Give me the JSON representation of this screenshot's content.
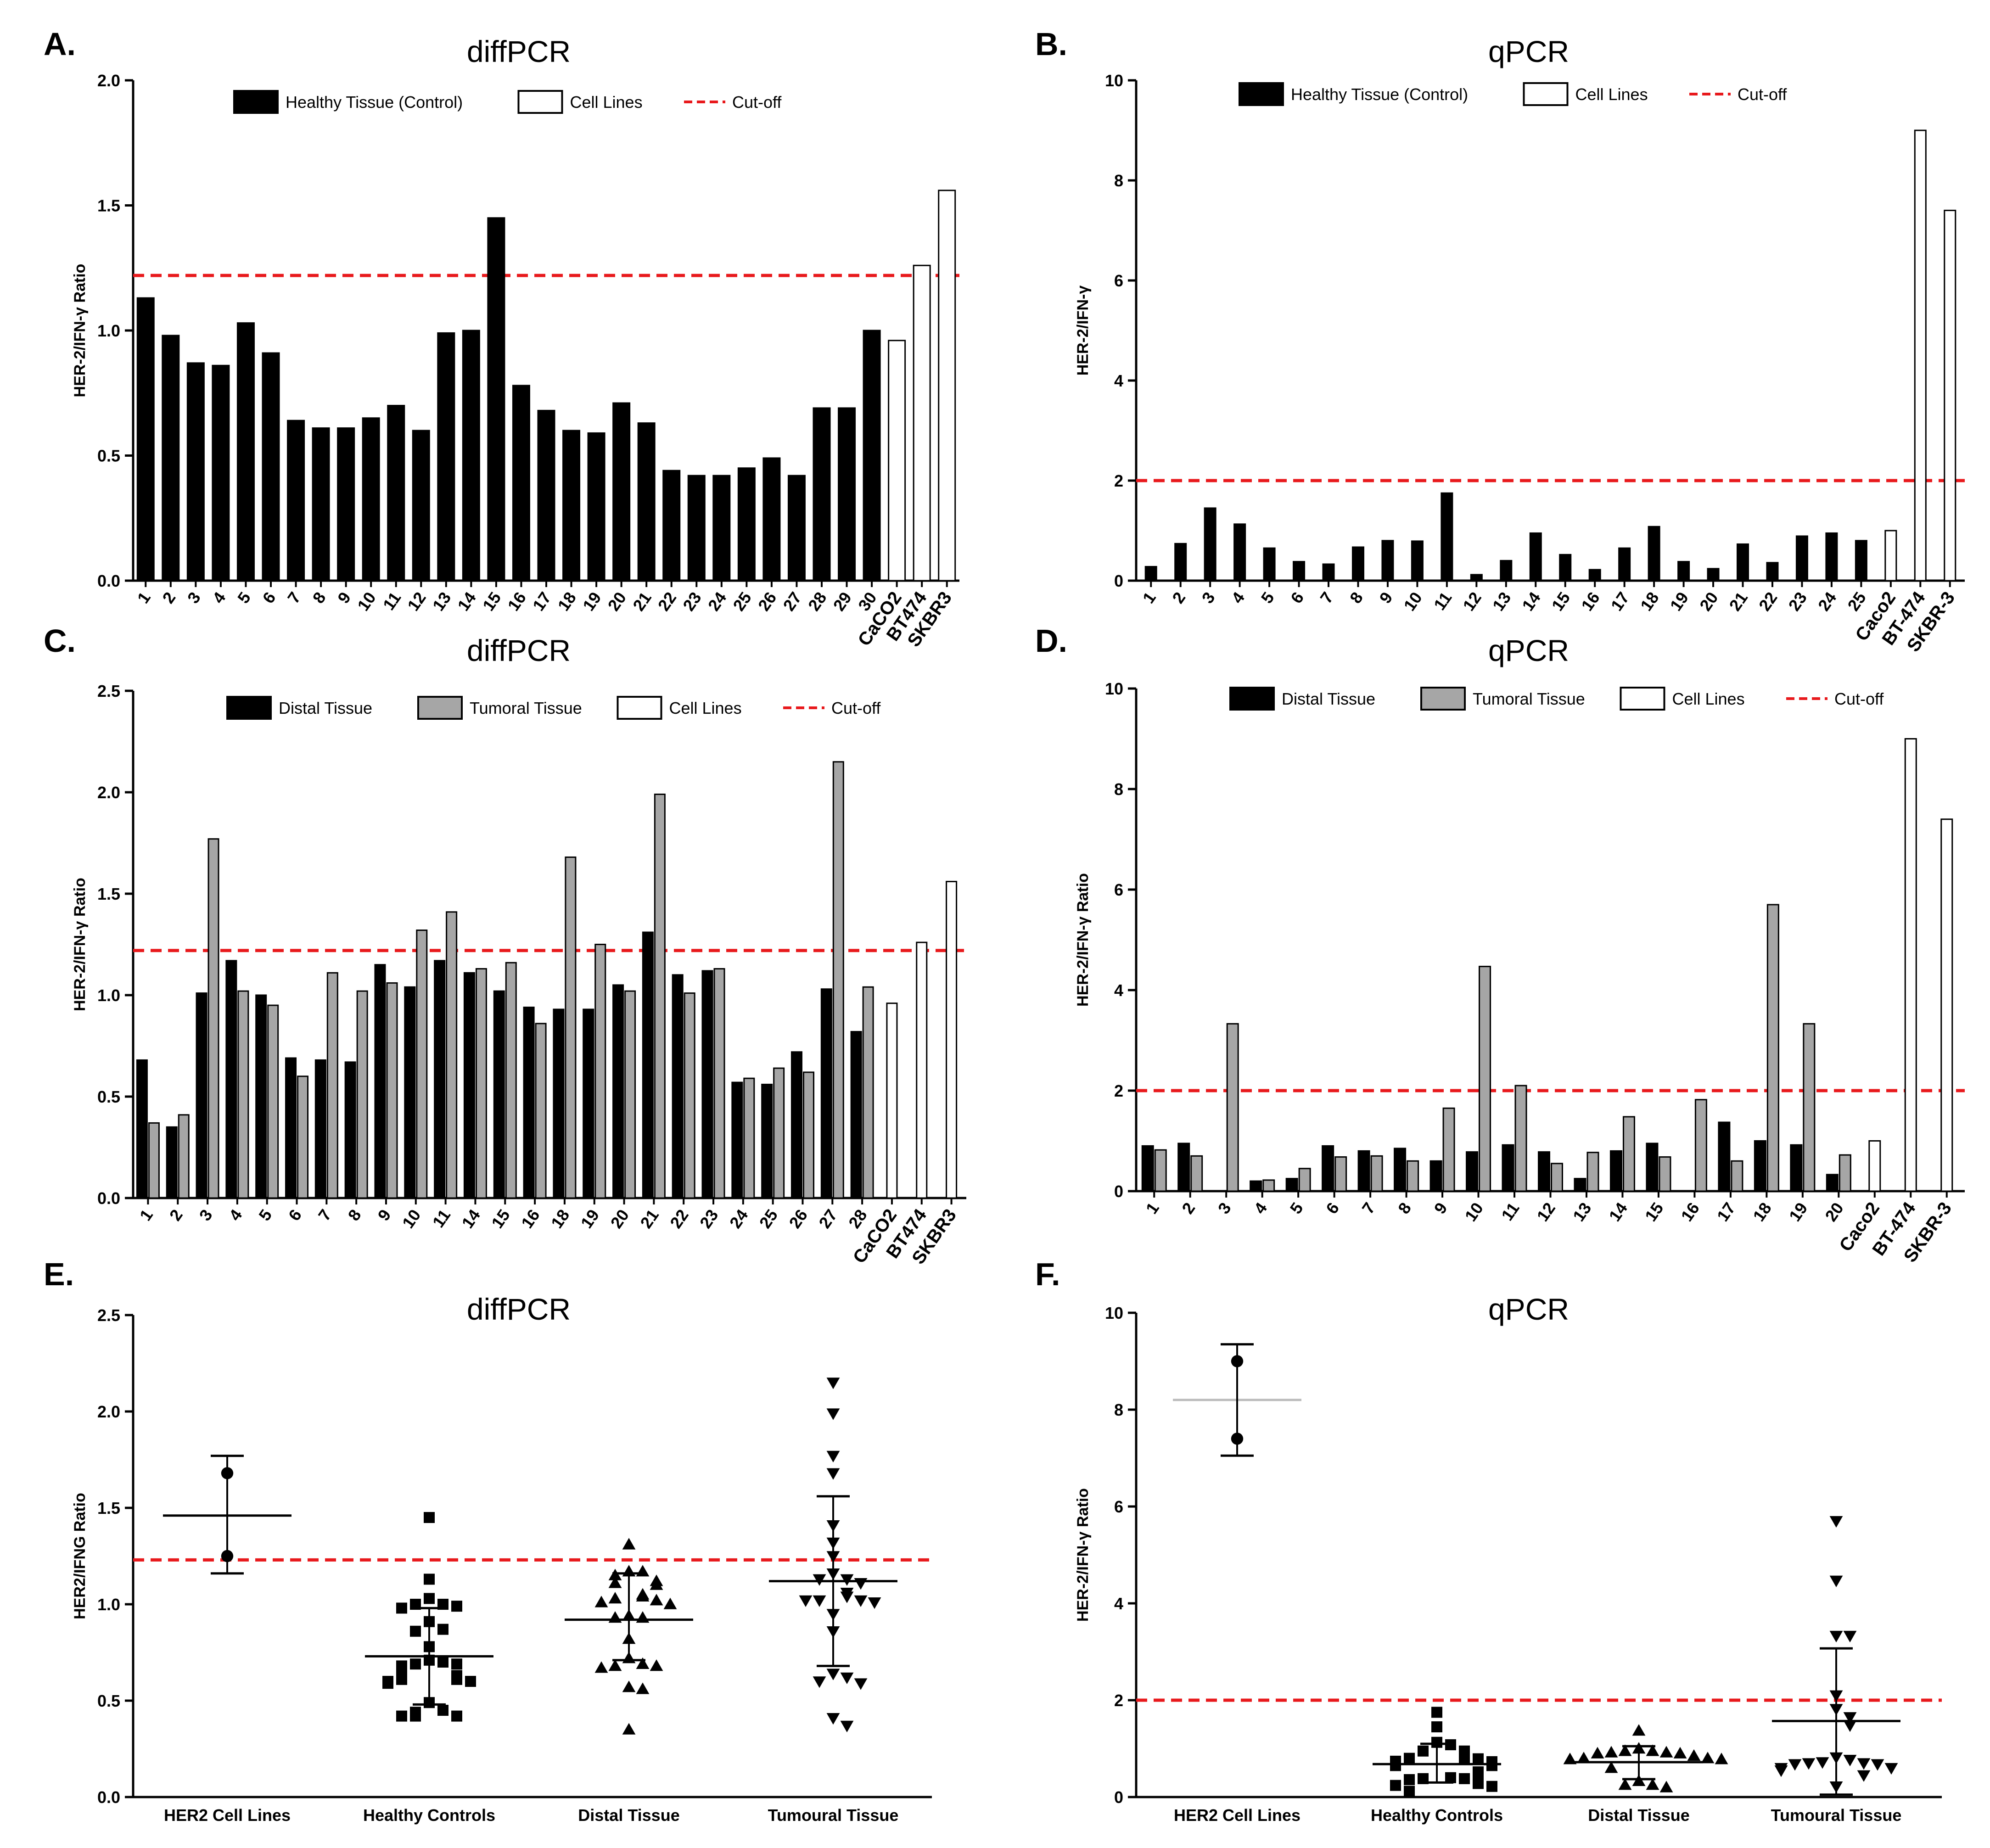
{
  "panels": [
    {
      "letter": "A.",
      "title": "diffPCR",
      "ylabel": "HER-2/IFN-γ Ratio",
      "yticks": [
        "0.0",
        "0.5",
        "1.0",
        "1.5",
        "2.0"
      ],
      "legend": [
        {
          "label": "Healthy  Tissue (Control)",
          "kind": "black"
        },
        {
          "label": "Cell  Lines",
          "kind": "white"
        },
        {
          "label": "Cut-off",
          "kind": "cutoff"
        }
      ]
    },
    {
      "letter": "B.",
      "title": "qPCR",
      "ylabel": "HER-2/IFN-γ",
      "yticks": [
        "0",
        "2",
        "4",
        "6",
        "8",
        "10"
      ],
      "legend": [
        {
          "label": "Healthy  Tissue (Control)",
          "kind": "black"
        },
        {
          "label": "Cell  Lines",
          "kind": "white"
        },
        {
          "label": "Cut-off",
          "kind": "cutoff"
        }
      ]
    },
    {
      "letter": "C.",
      "title": "diffPCR",
      "ylabel": "HER-2/IFN-γ Ratio",
      "yticks": [
        "0.0",
        "0.5",
        "1.0",
        "1.5",
        "2.0",
        "2.5"
      ],
      "legend": [
        {
          "label": "Distal  Tissue",
          "kind": "black"
        },
        {
          "label": "Tumoral  Tissue",
          "kind": "gray"
        },
        {
          "label": "Cell  Lines",
          "kind": "white"
        },
        {
          "label": "Cut-off",
          "kind": "cutoff"
        }
      ]
    },
    {
      "letter": "D.",
      "title": "qPCR",
      "ylabel": "HER-2/IFN-γ Ratio",
      "yticks": [
        "0",
        "2",
        "4",
        "6",
        "8",
        "10"
      ],
      "legend": [
        {
          "label": "Distal  Tissue",
          "kind": "black"
        },
        {
          "label": "Tumoral  Tissue",
          "kind": "gray"
        },
        {
          "label": "Cell  Lines",
          "kind": "white"
        },
        {
          "label": "Cut-off",
          "kind": "cutoff"
        }
      ]
    },
    {
      "letter": "E.",
      "title": "diffPCR",
      "ylabel": "HER2/IFNG Ratio",
      "yticks": [
        "0.0",
        "0.5",
        "1.0",
        "1.5",
        "2.0",
        "2.5"
      ],
      "legend": []
    },
    {
      "letter": "F.",
      "title": "qPCR",
      "ylabel": "HER-2/IFN-γ Ratio",
      "yticks": [
        "0",
        "2",
        "4",
        "6",
        "8",
        "10"
      ],
      "legend": []
    }
  ],
  "colors": {
    "black_bar": "#000000",
    "gray_bar": "#a6a6a6",
    "white_bar": "#ffffff",
    "cutoff": "#e8191c",
    "axis": "#000000"
  },
  "chart_data": [
    {
      "type": "bar",
      "title": "diffPCR",
      "ylabel": "HER-2/IFN-γ Ratio",
      "ylim": [
        0,
        2.0
      ],
      "cutoff": 1.22,
      "categories": [
        "1",
        "2",
        "3",
        "4",
        "5",
        "6",
        "7",
        "8",
        "9",
        "10",
        "11",
        "12",
        "13",
        "14",
        "15",
        "16",
        "17",
        "18",
        "19",
        "20",
        "21",
        "22",
        "23",
        "24",
        "25",
        "26",
        "27",
        "28",
        "29",
        "30",
        "CaCO2",
        "BT474",
        "SKBR3"
      ],
      "series": [
        {
          "name": "Healthy  Tissue (Control)",
          "values": [
            1.13,
            0.98,
            0.87,
            0.86,
            1.03,
            0.91,
            0.64,
            0.61,
            0.61,
            0.65,
            0.7,
            0.6,
            0.99,
            1.0,
            1.45,
            0.78,
            0.68,
            0.6,
            0.59,
            0.71,
            0.63,
            0.44,
            0.42,
            0.42,
            0.45,
            0.49,
            0.42,
            0.69,
            0.69,
            1.0,
            null,
            null,
            null
          ]
        },
        {
          "name": "Cell  Lines",
          "values": [
            null,
            null,
            null,
            null,
            null,
            null,
            null,
            null,
            null,
            null,
            null,
            null,
            null,
            null,
            null,
            null,
            null,
            null,
            null,
            null,
            null,
            null,
            null,
            null,
            null,
            null,
            null,
            null,
            null,
            null,
            0.96,
            1.26,
            1.56
          ]
        }
      ]
    },
    {
      "type": "bar",
      "title": "qPCR",
      "ylabel": "HER-2/IFN-γ",
      "ylim": [
        0,
        10
      ],
      "cutoff": 2,
      "categories": [
        "1",
        "2",
        "3",
        "4",
        "5",
        "6",
        "7",
        "8",
        "9",
        "10",
        "11",
        "12",
        "13",
        "14",
        "15",
        "16",
        "17",
        "18",
        "19",
        "20",
        "21",
        "22",
        "23",
        "24",
        "25",
        "Caco2",
        "BT-474",
        "SKBR-3"
      ],
      "series": [
        {
          "name": "Healthy  Tissue (Control)",
          "values": [
            0.28,
            0.74,
            1.45,
            1.13,
            0.65,
            0.38,
            0.33,
            0.67,
            0.8,
            0.79,
            1.75,
            0.12,
            0.4,
            0.95,
            0.52,
            0.22,
            0.65,
            1.08,
            0.38,
            0.24,
            0.73,
            0.36,
            0.89,
            0.95,
            0.8,
            null,
            null,
            null
          ]
        },
        {
          "name": "Cell  Lines",
          "values": [
            null,
            null,
            null,
            null,
            null,
            null,
            null,
            null,
            null,
            null,
            null,
            null,
            null,
            null,
            null,
            null,
            null,
            null,
            null,
            null,
            null,
            null,
            null,
            null,
            null,
            1.0,
            9.0,
            7.4
          ]
        }
      ]
    },
    {
      "type": "bar",
      "title": "diffPCR",
      "ylabel": "HER-2/IFN-γ Ratio",
      "ylim": [
        0,
        2.5
      ],
      "cutoff": 1.22,
      "categories": [
        "1",
        "2",
        "3",
        "4",
        "5",
        "6",
        "7",
        "8",
        "9",
        "10",
        "11",
        "14",
        "15",
        "16",
        "18",
        "19",
        "20",
        "21",
        "22",
        "23",
        "24",
        "25",
        "26",
        "27",
        "28",
        "CaCO2",
        "BT474",
        "SKBR3"
      ],
      "series": [
        {
          "name": "Distal  Tissue",
          "values": [
            0.68,
            0.35,
            1.01,
            1.17,
            1.0,
            0.69,
            0.68,
            0.67,
            1.15,
            1.04,
            1.17,
            1.11,
            1.02,
            0.94,
            0.93,
            0.93,
            1.05,
            1.31,
            1.1,
            1.12,
            0.57,
            0.56,
            0.72,
            1.03,
            0.82,
            null,
            null,
            null
          ]
        },
        {
          "name": "Tumoral  Tissue",
          "values": [
            0.37,
            0.41,
            1.77,
            1.02,
            0.95,
            0.6,
            1.11,
            1.02,
            1.06,
            1.32,
            1.41,
            1.13,
            1.16,
            0.86,
            1.68,
            1.25,
            1.02,
            1.99,
            1.01,
            1.13,
            0.59,
            0.64,
            0.62,
            2.15,
            1.04,
            null,
            null,
            null
          ]
        },
        {
          "name": "Cell  Lines",
          "values": [
            null,
            null,
            null,
            null,
            null,
            null,
            null,
            null,
            null,
            null,
            null,
            null,
            null,
            null,
            null,
            null,
            null,
            null,
            null,
            null,
            null,
            null,
            null,
            null,
            null,
            0.96,
            1.26,
            1.56
          ]
        }
      ]
    },
    {
      "type": "bar",
      "title": "qPCR",
      "ylabel": "HER-2/IFN-γ Ratio",
      "ylim": [
        0,
        10
      ],
      "cutoff": 2,
      "categories": [
        "1",
        "2",
        "3",
        "4",
        "5",
        "6",
        "7",
        "8",
        "9",
        "10",
        "11",
        "12",
        "13",
        "14",
        "15",
        "16",
        "17",
        "18",
        "19",
        "20",
        "Caco2",
        "BT-474",
        "SKBR-3"
      ],
      "series": [
        {
          "name": "Distal  Tissue",
          "values": [
            0.9,
            0.95,
            null,
            0.2,
            0.25,
            0.9,
            0.8,
            0.85,
            0.6,
            0.78,
            0.92,
            0.78,
            0.25,
            0.8,
            0.95,
            null,
            1.37,
            1.0,
            0.92,
            0.33,
            null,
            null,
            null
          ]
        },
        {
          "name": "Tumoral  Tissue",
          "values": [
            0.82,
            0.7,
            3.33,
            0.22,
            0.45,
            0.68,
            0.7,
            0.6,
            1.65,
            4.47,
            2.1,
            0.55,
            0.77,
            1.48,
            0.68,
            1.82,
            0.6,
            5.7,
            3.33,
            0.72,
            null,
            null,
            null
          ]
        },
        {
          "name": "Cell  Lines",
          "values": [
            null,
            null,
            null,
            null,
            null,
            null,
            null,
            null,
            null,
            null,
            null,
            null,
            null,
            null,
            null,
            null,
            null,
            null,
            null,
            null,
            1.0,
            9.0,
            7.4
          ]
        }
      ]
    },
    {
      "type": "scatter",
      "title": "diffPCR",
      "ylabel": "HER2/IFNG Ratio",
      "ylim": [
        0,
        2.5
      ],
      "cutoff": 1.23,
      "categories": [
        "HER2 Cell Lines",
        "Healthy Controls",
        "Distal Tissue",
        "Tumoural Tissue"
      ],
      "groups": [
        {
          "name": "HER2 Cell Lines",
          "marker": "circle",
          "mean": 1.46,
          "error": [
            1.16,
            1.77
          ],
          "values": [
            1.68,
            1.25
          ]
        },
        {
          "name": "Healthy Controls",
          "marker": "square",
          "mean": 0.73,
          "error": [
            0.48,
            0.98
          ],
          "values": [
            1.45,
            1.13,
            1.03,
            1.0,
            1.0,
            0.99,
            0.98,
            0.91,
            0.87,
            0.86,
            0.78,
            0.71,
            0.7,
            0.69,
            0.69,
            0.68,
            0.65,
            0.64,
            0.63,
            0.61,
            0.61,
            0.6,
            0.6,
            0.59,
            0.49,
            0.45,
            0.44,
            0.42,
            0.42,
            0.42
          ]
        },
        {
          "name": "Distal Tissue",
          "marker": "triangle",
          "mean": 0.92,
          "error": [
            0.71,
            1.16
          ],
          "values": [
            1.31,
            1.17,
            1.17,
            1.15,
            1.12,
            1.11,
            1.1,
            1.05,
            1.04,
            1.03,
            1.02,
            1.01,
            1.0,
            0.94,
            0.93,
            0.93,
            0.82,
            0.72,
            0.69,
            0.68,
            0.68,
            0.67,
            0.57,
            0.56,
            0.35
          ]
        },
        {
          "name": "Tumoural Tissue",
          "marker": "triangle-down",
          "mean": 1.12,
          "error": [
            0.68,
            1.56
          ],
          "values": [
            2.15,
            1.99,
            1.77,
            1.68,
            1.41,
            1.32,
            1.25,
            1.16,
            1.13,
            1.13,
            1.11,
            1.06,
            1.04,
            1.02,
            1.02,
            1.02,
            1.01,
            0.95,
            0.86,
            0.64,
            0.62,
            0.6,
            0.59,
            0.41,
            0.37
          ]
        }
      ]
    },
    {
      "type": "scatter",
      "title": "qPCR",
      "ylabel": "HER-2/IFN-γ Ratio",
      "ylim": [
        0,
        10
      ],
      "cutoff": 2,
      "categories": [
        "HER2 Cell Lines",
        "Healthy Controls",
        "Distal Tissue",
        "Tumoural Tissue"
      ],
      "groups": [
        {
          "name": "HER2 Cell Lines",
          "marker": "circle",
          "mean": 8.2,
          "error": [
            7.05,
            9.35
          ],
          "values": [
            9.0,
            7.4
          ]
        },
        {
          "name": "Healthy Controls",
          "marker": "square",
          "mean": 0.68,
          "error": [
            0.3,
            1.1
          ],
          "values": [
            1.75,
            1.45,
            1.13,
            1.08,
            0.95,
            0.95,
            0.89,
            0.8,
            0.8,
            0.79,
            0.74,
            0.73,
            0.67,
            0.65,
            0.65,
            0.52,
            0.4,
            0.38,
            0.38,
            0.36,
            0.33,
            0.28,
            0.24,
            0.22,
            0.12
          ]
        },
        {
          "name": "Distal Tissue",
          "marker": "triangle",
          "mean": 0.72,
          "error": [
            0.37,
            1.05
          ],
          "values": [
            1.37,
            1.0,
            0.95,
            0.95,
            0.92,
            0.92,
            0.9,
            0.9,
            0.85,
            0.8,
            0.8,
            0.78,
            0.78,
            0.6,
            0.33,
            0.25,
            0.25,
            0.2
          ]
        },
        {
          "name": "Tumoural Tissue",
          "marker": "triangle-down",
          "mean": 1.57,
          "error": [
            0.05,
            3.07
          ],
          "values": [
            5.7,
            4.47,
            3.33,
            3.33,
            2.1,
            1.82,
            1.65,
            1.48,
            0.82,
            0.77,
            0.72,
            0.7,
            0.7,
            0.68,
            0.68,
            0.6,
            0.6,
            0.55,
            0.45,
            0.22
          ]
        }
      ]
    }
  ]
}
